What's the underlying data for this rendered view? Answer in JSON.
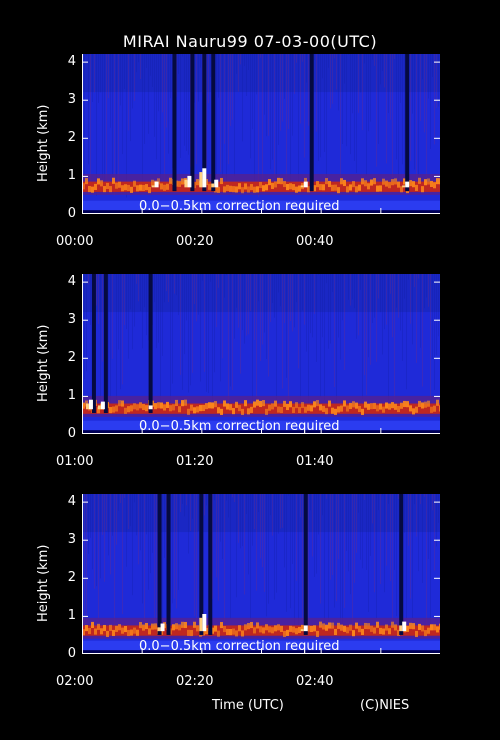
{
  "title": "MIRAI Nauru99 07-03-00(UTC)",
  "ylabel": "Height (km)",
  "xlabel": "Time (UTC)",
  "credit": "(C)NIES",
  "note": "0.0−0.5km correction required",
  "colors": {
    "background": "#000000",
    "field": "#1f2ad8",
    "cloud_low": "#d4280a",
    "cloud_mid": "#ff8a1a",
    "cloud_high": "#ffffff",
    "noise": "#8a2a6a"
  },
  "chart_data": [
    {
      "type": "heatmap",
      "title": "MIRAI Nauru99 07-03-00(UTC)",
      "ylabel": "Height (km)",
      "ylim": [
        0,
        4.2
      ],
      "yticks": [
        "0",
        "1",
        "2",
        "3",
        "4"
      ],
      "xticks": [
        "00:00",
        "00:20",
        "00:40"
      ],
      "xlim_minutes": [
        0,
        60
      ],
      "cloud_base_km": 0.7,
      "dark_columns_minutes": [
        15.5,
        18.5,
        20.5,
        22,
        38.5,
        54.5
      ],
      "bright_peaks": [
        {
          "t": 12.5,
          "h": 0.85
        },
        {
          "t": 18,
          "h": 1.0
        },
        {
          "t": 20.5,
          "h": 1.2
        },
        {
          "t": 22.5,
          "h": 0.9
        },
        {
          "t": 37.5,
          "h": 0.85
        },
        {
          "t": 54.5,
          "h": 0.85
        }
      ]
    },
    {
      "type": "heatmap",
      "ylabel": "Height (km)",
      "ylim": [
        0,
        4.2
      ],
      "yticks": [
        "0",
        "1",
        "2",
        "3",
        "4"
      ],
      "xticks": [
        "01:00",
        "01:20",
        "01:40"
      ],
      "xlim_minutes": [
        60,
        120
      ],
      "cloud_base_km": 0.65,
      "dark_columns_minutes": [
        62,
        64,
        71.5
      ],
      "bright_peaks": [
        {
          "t": 61.5,
          "h": 0.9
        },
        {
          "t": 63.5,
          "h": 0.85
        },
        {
          "t": 71.5,
          "h": 0.75
        }
      ]
    },
    {
      "type": "heatmap",
      "ylabel": "Height (km)",
      "ylim": [
        0,
        4.2
      ],
      "yticks": [
        "0",
        "1",
        "2",
        "3",
        "4"
      ],
      "xticks": [
        "02:00",
        "02:20",
        "02:40"
      ],
      "xlim_minutes": [
        120,
        180
      ],
      "cloud_base_km": 0.6,
      "dark_columns_minutes": [
        133,
        134.5,
        140,
        141.5,
        157.5,
        173.5
      ],
      "bright_peaks": [
        {
          "t": 133.5,
          "h": 0.8
        },
        {
          "t": 140.5,
          "h": 1.05
        },
        {
          "t": 157.5,
          "h": 0.75
        },
        {
          "t": 174,
          "h": 0.85
        }
      ]
    }
  ]
}
